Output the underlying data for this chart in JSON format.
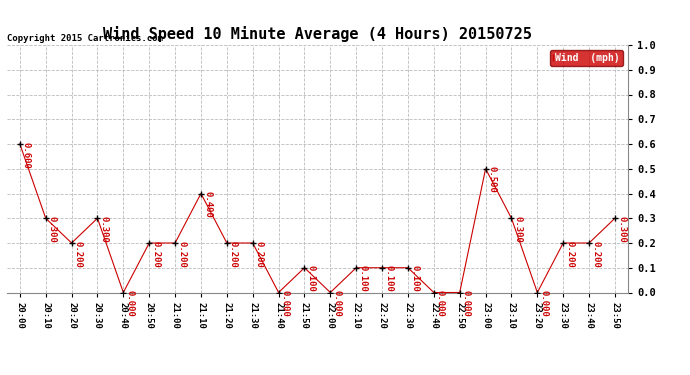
{
  "title": "Wind Speed 10 Minute Average (4 Hours) 20150725",
  "copyright": "Copyright 2015 Cartronics.com",
  "legend_label": "Wind  (mph)",
  "x_labels": [
    "20:00",
    "20:10",
    "20:20",
    "20:30",
    "20:40",
    "20:50",
    "21:00",
    "21:10",
    "21:20",
    "21:30",
    "21:40",
    "21:50",
    "22:00",
    "22:10",
    "22:20",
    "22:30",
    "22:40",
    "22:50",
    "23:00",
    "23:10",
    "23:20",
    "23:30",
    "23:40",
    "23:50"
  ],
  "y_values": [
    0.6,
    0.3,
    0.2,
    0.3,
    0.0,
    0.2,
    0.2,
    0.4,
    0.2,
    0.2,
    0.0,
    0.1,
    0.0,
    0.1,
    0.1,
    0.1,
    0.0,
    0.0,
    0.5,
    0.3,
    0.0,
    0.2,
    0.2,
    0.3
  ],
  "line_color": "#cc0000",
  "marker_color": "#000000",
  "ylim": [
    0.0,
    1.0
  ],
  "yticks": [
    0.0,
    0.1,
    0.2,
    0.3,
    0.4,
    0.5,
    0.6,
    0.7,
    0.8,
    0.9,
    1.0
  ],
  "bg_color": "#ffffff",
  "grid_color": "#bbbbbb",
  "title_fontsize": 11,
  "xlabel_fontsize": 6.5,
  "ylabel_fontsize": 7.5,
  "annotation_fontsize": 6.5,
  "copyright_fontsize": 6.5,
  "legend_bg": "#cc0000",
  "legend_text_color": "#ffffff",
  "legend_fontsize": 7
}
